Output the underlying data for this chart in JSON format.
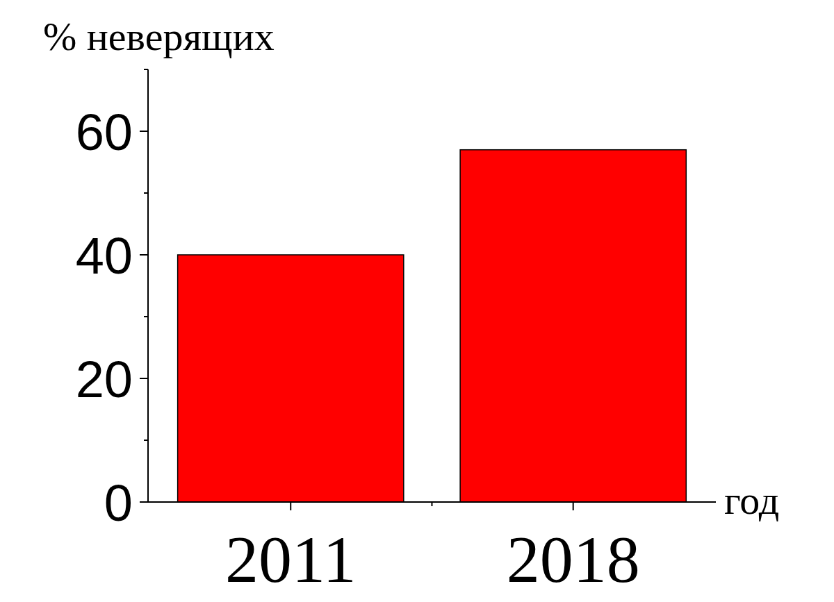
{
  "chart_data": {
    "type": "bar",
    "xlabel": "год",
    "ylabel": "% неверящих",
    "categories": [
      "2011",
      "2018"
    ],
    "values": [
      40,
      57
    ],
    "color": "#ff0000",
    "ylim": [
      0,
      70
    ],
    "yticks": [
      0,
      {
        "value": 10,
        "label": null
      },
      20,
      {
        "value": 30,
        "label": null
      },
      40,
      {
        "value": 50,
        "label": null
      },
      60,
      {
        "value": 70,
        "label": null
      }
    ],
    "grid": false
  }
}
